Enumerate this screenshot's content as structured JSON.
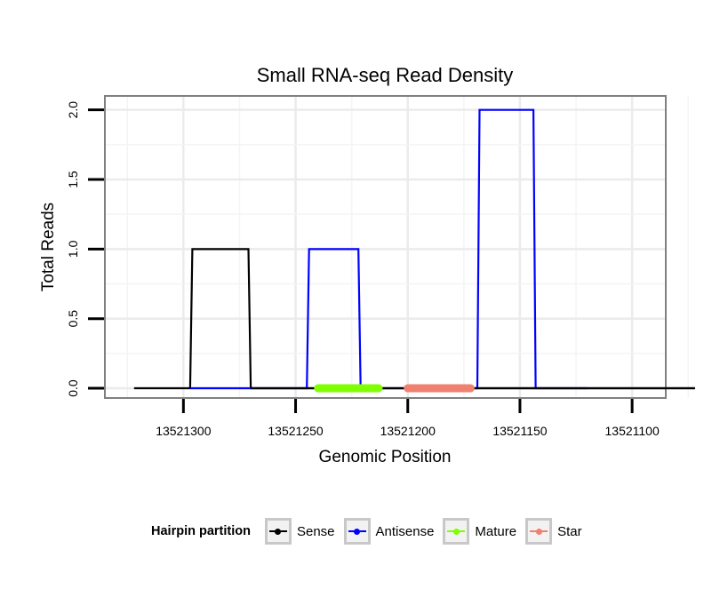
{
  "chart_data": {
    "type": "line",
    "title": "Small RNA-seq Read Density",
    "xlabel": "Genomic Position",
    "ylabel": "Total Reads",
    "x_reversed": true,
    "xlim": [
      13521335,
      13521085
    ],
    "ylim": [
      -0.07,
      2.1
    ],
    "x_ticks": [
      13521300,
      13521250,
      13521200,
      13521150,
      13521100
    ],
    "x_tick_labels": [
      "13521300",
      "13521250",
      "13521200",
      "13521150",
      "13521100"
    ],
    "y_ticks": [
      0.0,
      0.5,
      1.0,
      1.5,
      2.0
    ],
    "y_tick_labels": [
      "0.0",
      "0.5",
      "1.0",
      "1.5",
      "2.0"
    ],
    "grid": true,
    "series": [
      {
        "name": "Sense",
        "color": "#000000",
        "x": [
          13521322,
          13521297,
          13521296,
          13521271,
          13521270,
          13521072
        ],
        "y": [
          0,
          0,
          1,
          1,
          0,
          0
        ]
      },
      {
        "name": "Antisense",
        "color": "#0000ff",
        "x": [
          13521297,
          13521245,
          13521244,
          13521222,
          13521221,
          13521169,
          13521168,
          13521144,
          13521143,
          13521120
        ],
        "y": [
          0,
          0,
          1,
          1,
          0,
          0,
          2,
          2,
          0,
          0
        ]
      }
    ],
    "regions": [
      {
        "name": "Mature",
        "color": "#7fff00",
        "start": 13521240,
        "end": 13521213,
        "y": 0
      },
      {
        "name": "Star",
        "color": "#f08070",
        "start": 13521200,
        "end": 13521172,
        "y": 0
      }
    ],
    "legend_position": "bottom"
  },
  "legend": {
    "title": "Hairpin partition",
    "items": [
      {
        "label": "Sense",
        "color": "#000000"
      },
      {
        "label": "Antisense",
        "color": "#0000ff"
      },
      {
        "label": "Mature",
        "color": "#7fff00"
      },
      {
        "label": "Star",
        "color": "#f08070"
      }
    ]
  }
}
